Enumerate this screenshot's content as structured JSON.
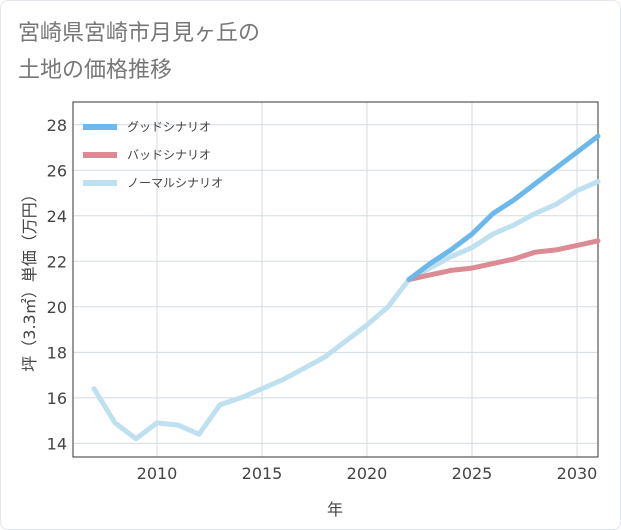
{
  "title_line1": "宮崎県宮崎市月見ヶ丘の",
  "title_line2": "土地の価格推移",
  "chart_data": {
    "type": "line",
    "xlabel": "年",
    "ylabel": "坪（3.3㎡）単価（万円）",
    "xlim": [
      2006,
      2031
    ],
    "ylim": [
      13.4,
      29.0
    ],
    "xticks": [
      2010,
      2015,
      2020,
      2025,
      2030
    ],
    "yticks": [
      14,
      16,
      18,
      20,
      22,
      24,
      26,
      28
    ],
    "grid": true,
    "legend_position": "top-left",
    "series": [
      {
        "name": "グッドシナリオ",
        "color": "#6cb8ec",
        "x": [
          2022,
          2023,
          2024,
          2025,
          2026,
          2027,
          2028,
          2029,
          2030,
          2031
        ],
        "y": [
          21.2,
          21.9,
          22.5,
          23.2,
          24.1,
          24.7,
          25.4,
          26.1,
          26.8,
          27.5
        ]
      },
      {
        "name": "バッドシナリオ",
        "color": "#dc8a93",
        "x": [
          2022,
          2023,
          2024,
          2025,
          2026,
          2027,
          2028,
          2029,
          2030,
          2031
        ],
        "y": [
          21.2,
          21.4,
          21.6,
          21.7,
          21.9,
          22.1,
          22.4,
          22.5,
          22.7,
          22.9
        ]
      },
      {
        "name": "ノーマルシナリオ",
        "color": "#bfe0ee",
        "x": [
          2007,
          2008,
          2009,
          2010,
          2011,
          2012,
          2013,
          2014,
          2015,
          2016,
          2017,
          2018,
          2019,
          2020,
          2021,
          2022,
          2023,
          2024,
          2025,
          2026,
          2027,
          2028,
          2029,
          2030,
          2031
        ],
        "y": [
          16.4,
          14.9,
          14.2,
          14.9,
          14.8,
          14.4,
          15.7,
          16.0,
          16.4,
          16.8,
          17.3,
          17.8,
          18.5,
          19.2,
          20.0,
          21.2,
          21.7,
          22.2,
          22.6,
          23.2,
          23.6,
          24.1,
          24.5,
          25.1,
          25.5
        ]
      }
    ]
  }
}
